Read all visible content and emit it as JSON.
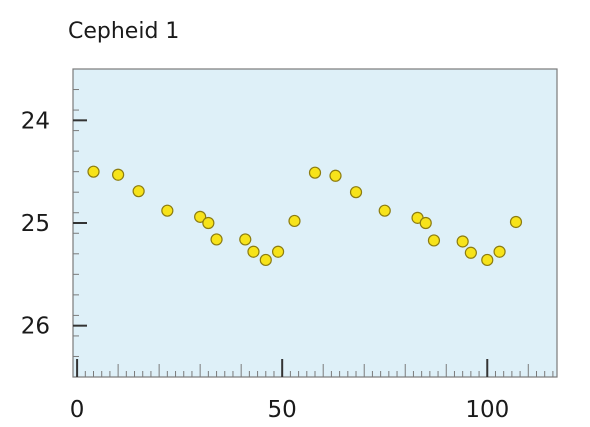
{
  "chart_data": {
    "type": "scatter",
    "title": "Cepheid 1",
    "xlabel": "",
    "ylabel": "",
    "xlim": [
      -1,
      117
    ],
    "ylim": [
      26.5,
      23.5
    ],
    "y_inverted": true,
    "x_ticks": [
      0,
      50,
      100
    ],
    "y_ticks": [
      24,
      25,
      26
    ],
    "x_minor_step": 2,
    "y_minor_step": 0.2,
    "grid": false,
    "colors": {
      "plot_background": "#def0f8",
      "axis": "#7a7a7a",
      "point_fill": "#f7e31a",
      "point_stroke": "#8c7c10"
    },
    "series": [
      {
        "points": [
          {
            "x": 4,
            "y": 24.5
          },
          {
            "x": 10,
            "y": 24.53
          },
          {
            "x": 15,
            "y": 24.69
          },
          {
            "x": 22,
            "y": 24.88
          },
          {
            "x": 30,
            "y": 24.94
          },
          {
            "x": 32,
            "y": 25.0
          },
          {
            "x": 34,
            "y": 25.16
          },
          {
            "x": 41,
            "y": 25.16
          },
          {
            "x": 43,
            "y": 25.28
          },
          {
            "x": 46,
            "y": 25.36
          },
          {
            "x": 49,
            "y": 25.28
          },
          {
            "x": 53,
            "y": 24.98
          },
          {
            "x": 58,
            "y": 24.51
          },
          {
            "x": 63,
            "y": 24.54
          },
          {
            "x": 68,
            "y": 24.7
          },
          {
            "x": 75,
            "y": 24.88
          },
          {
            "x": 83,
            "y": 24.95
          },
          {
            "x": 85,
            "y": 25.0
          },
          {
            "x": 87,
            "y": 25.17
          },
          {
            "x": 94,
            "y": 25.18
          },
          {
            "x": 96,
            "y": 25.29
          },
          {
            "x": 100,
            "y": 25.36
          },
          {
            "x": 103,
            "y": 25.28
          },
          {
            "x": 107,
            "y": 24.99
          }
        ]
      }
    ]
  }
}
